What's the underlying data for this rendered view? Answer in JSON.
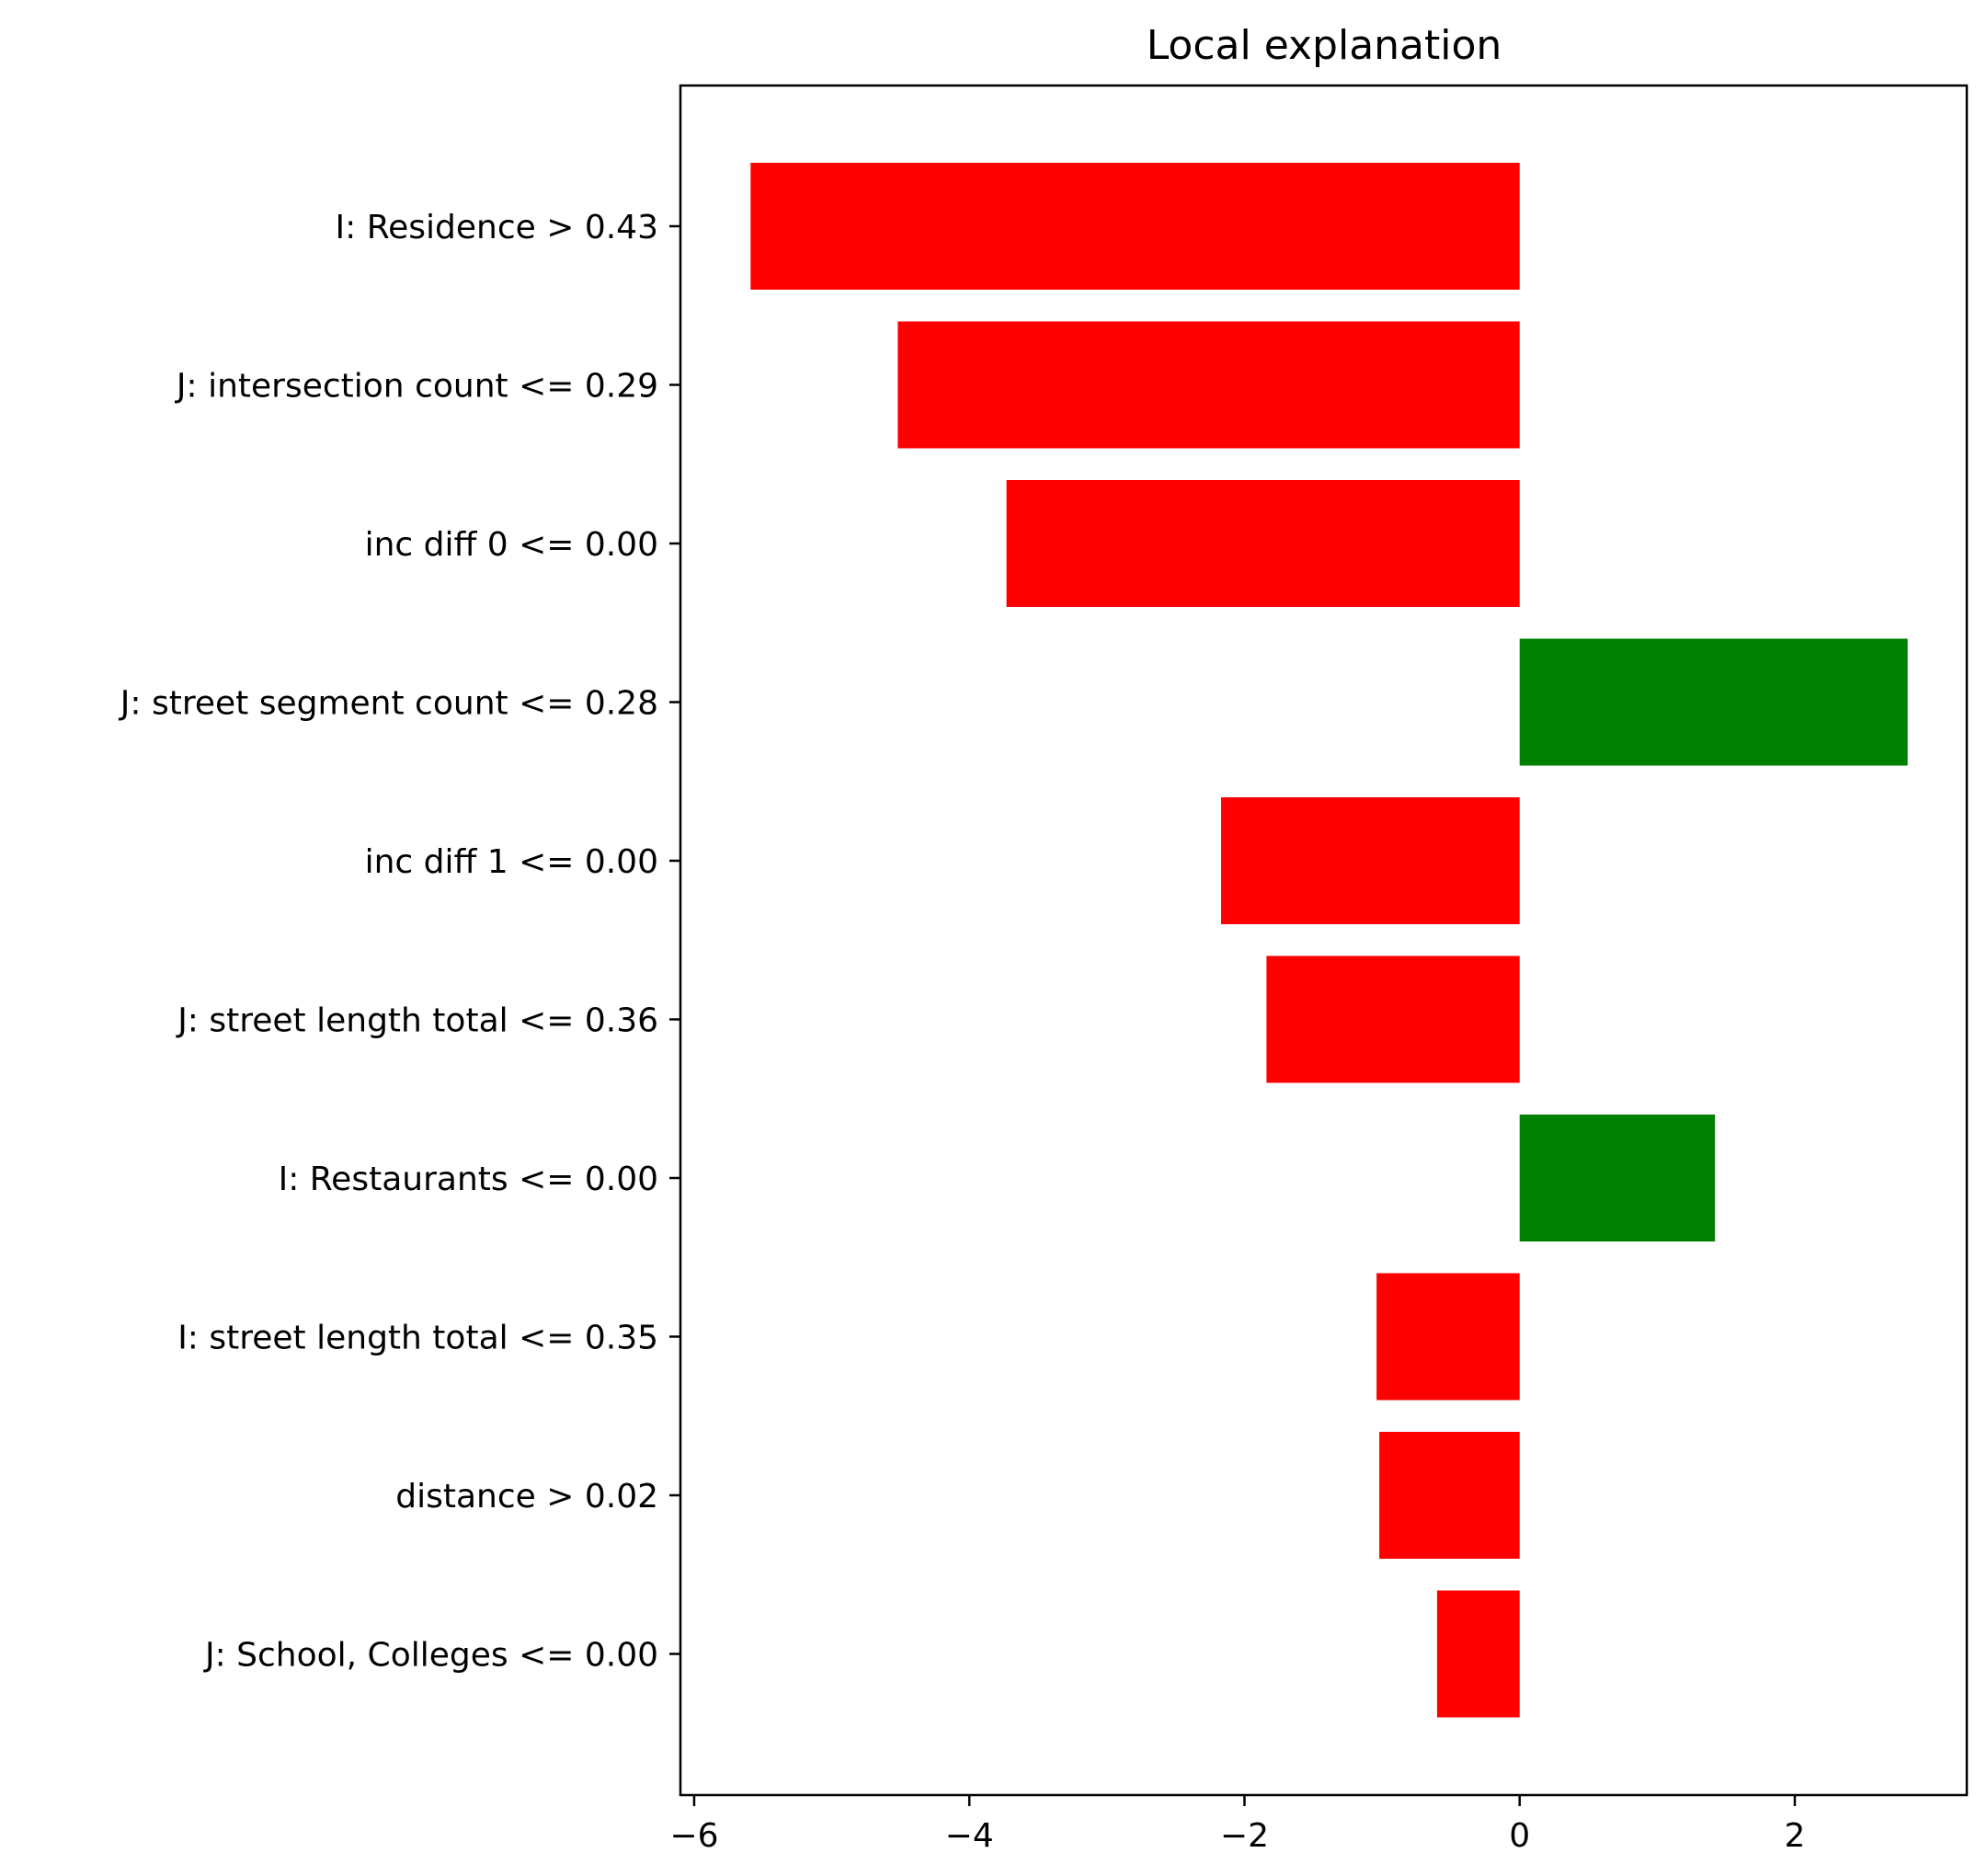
{
  "chart_data": {
    "type": "bar",
    "orientation": "horizontal",
    "title": "Local explanation",
    "xlabel": "",
    "ylabel": "",
    "xlim": [
      -6.1,
      3.25
    ],
    "xticks": [
      -6,
      -4,
      -2,
      0,
      2
    ],
    "xtick_labels": [
      "−6",
      "−4",
      "−2",
      "0",
      "2"
    ],
    "grid": false,
    "categories": [
      "I: Residence > 0.43",
      "J: intersection count <= 0.29",
      "inc diff 0 <= 0.00",
      "J: street segment count <= 0.28",
      "inc diff 1 <= 0.00",
      "J: street length total <= 0.36",
      "I: Restaurants <= 0.00",
      "I: street length total <= 0.35",
      "distance > 0.02",
      "J: School, Colleges <= 0.00"
    ],
    "values": [
      -5.59,
      -4.52,
      -3.73,
      2.82,
      -2.17,
      -1.84,
      1.42,
      -1.04,
      -1.02,
      -0.6
    ],
    "colors": {
      "positive": "#008000",
      "negative": "#ff0000"
    }
  }
}
